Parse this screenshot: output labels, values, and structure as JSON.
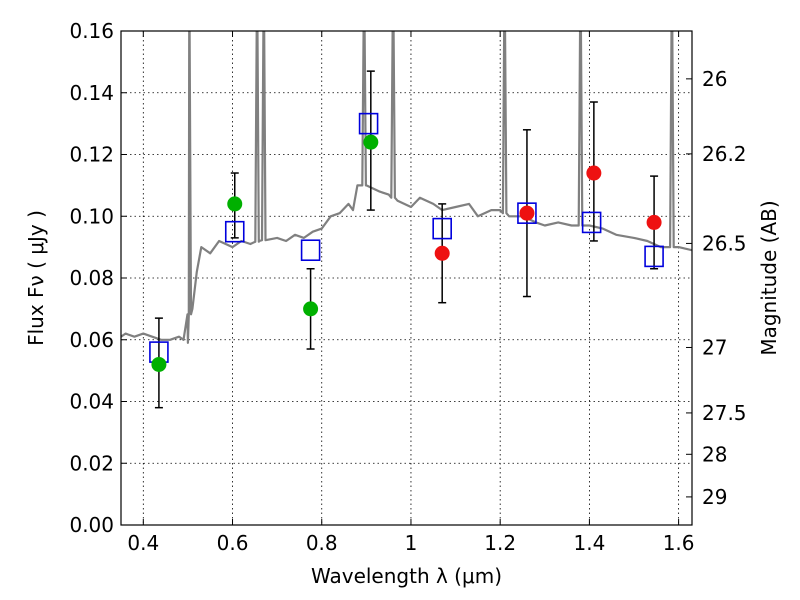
{
  "chart_data": {
    "type": "scatter",
    "xlabel": "Wavelength  λ (μm)",
    "ylabel": "Flux  Fν  ( μJy )",
    "right_ylabel": "Magnitude (AB)",
    "xlim": [
      0.35,
      1.63
    ],
    "ylim": [
      0.0,
      0.16
    ],
    "x_ticks": [
      0.4,
      0.6,
      0.8,
      1.0,
      1.2,
      1.4,
      1.6
    ],
    "x_tick_labels": [
      "0.4",
      "0.6",
      "0.8",
      "1",
      "1.2",
      "1.4",
      "1.6"
    ],
    "y_ticks": [
      0.0,
      0.02,
      0.04,
      0.06,
      0.08,
      0.1,
      0.12,
      0.14,
      0.16
    ],
    "y_tick_labels": [
      "0.00",
      "0.02",
      "0.04",
      "0.06",
      "0.08",
      "0.10",
      "0.12",
      "0.14",
      "0.16"
    ],
    "right_ticks": [
      {
        "label": "26",
        "flux": 0.1445
      },
      {
        "label": "26.2",
        "flux": 0.1202
      },
      {
        "label": "26.5",
        "flux": 0.0912
      },
      {
        "label": "27",
        "flux": 0.0575
      },
      {
        "label": "27.5",
        "flux": 0.0363
      },
      {
        "label": "28",
        "flux": 0.0229
      },
      {
        "label": "29",
        "flux": 0.0091
      }
    ],
    "grid": true,
    "colors": {
      "spectrum": "#808080",
      "green_points": "#00b000",
      "red_points": "#ee1111",
      "model_squares": "#0000dd",
      "errorbars": "#000000"
    },
    "spectrum": {
      "x": [
        0.35,
        0.36,
        0.38,
        0.4,
        0.42,
        0.44,
        0.46,
        0.48,
        0.49,
        0.5,
        0.502,
        0.51,
        0.52,
        0.53,
        0.55,
        0.57,
        0.6,
        0.62,
        0.64,
        0.66,
        0.7,
        0.72,
        0.74,
        0.76,
        0.78,
        0.8,
        0.82,
        0.84,
        0.86,
        0.87,
        0.88,
        0.9,
        0.93,
        0.95,
        0.97,
        1.0,
        1.02,
        1.05,
        1.07,
        1.1,
        1.13,
        1.15,
        1.18,
        1.2,
        1.22,
        1.25,
        1.28,
        1.3,
        1.33,
        1.36,
        1.4,
        1.43,
        1.46,
        1.5,
        1.53,
        1.56,
        1.6,
        1.63
      ],
      "y": [
        0.061,
        0.062,
        0.061,
        0.062,
        0.061,
        0.06,
        0.06,
        0.061,
        0.06,
        0.059,
        0.068,
        0.07,
        0.082,
        0.09,
        0.088,
        0.092,
        0.09,
        0.092,
        0.091,
        0.092,
        0.093,
        0.092,
        0.094,
        0.093,
        0.095,
        0.096,
        0.1,
        0.101,
        0.104,
        0.102,
        0.11,
        0.11,
        0.108,
        0.107,
        0.105,
        0.103,
        0.106,
        0.104,
        0.102,
        0.103,
        0.104,
        0.1,
        0.102,
        0.102,
        0.1,
        0.1,
        0.098,
        0.097,
        0.098,
        0.097,
        0.097,
        0.096,
        0.094,
        0.093,
        0.092,
        0.09,
        0.09,
        0.089
      ],
      "emission_lines": [
        {
          "x": 0.503,
          "peak": 0.16
        },
        {
          "x": 0.655,
          "peak": 0.16
        },
        {
          "x": 0.67,
          "peak": 0.16
        },
        {
          "x": 0.895,
          "peak": 0.16
        },
        {
          "x": 0.96,
          "peak": 0.16
        },
        {
          "x": 1.21,
          "peak": 0.16
        },
        {
          "x": 1.38,
          "peak": 0.16
        },
        {
          "x": 1.585,
          "peak": 0.16
        }
      ]
    },
    "model_squares": {
      "x": [
        0.435,
        0.605,
        0.775,
        0.905,
        1.07,
        1.26,
        1.405,
        1.545
      ],
      "y": [
        0.056,
        0.095,
        0.089,
        0.13,
        0.096,
        0.101,
        0.098,
        0.087
      ]
    },
    "observed_points": [
      {
        "x": 0.435,
        "y": 0.052,
        "err_low": 0.038,
        "err_high": 0.067,
        "group": "green"
      },
      {
        "x": 0.605,
        "y": 0.104,
        "err_low": 0.093,
        "err_high": 0.114,
        "group": "green"
      },
      {
        "x": 0.775,
        "y": 0.07,
        "err_low": 0.057,
        "err_high": 0.083,
        "group": "green"
      },
      {
        "x": 0.91,
        "y": 0.124,
        "err_low": 0.102,
        "err_high": 0.147,
        "group": "green"
      },
      {
        "x": 1.07,
        "y": 0.088,
        "err_low": 0.072,
        "err_high": 0.104,
        "group": "red"
      },
      {
        "x": 1.26,
        "y": 0.101,
        "err_low": 0.074,
        "err_high": 0.128,
        "group": "red"
      },
      {
        "x": 1.41,
        "y": 0.114,
        "err_low": 0.092,
        "err_high": 0.137,
        "group": "red"
      },
      {
        "x": 1.545,
        "y": 0.098,
        "err_low": 0.083,
        "err_high": 0.113,
        "group": "red"
      }
    ]
  }
}
